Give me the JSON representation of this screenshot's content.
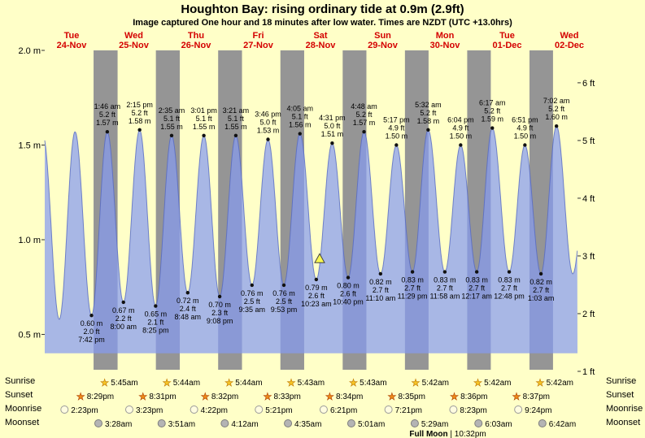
{
  "title": "Houghton Bay: rising  ordinary tide at 0.9m (2.9ft)",
  "subtitle": "Image captured One hour and 18 minutes after low water. Times are NZDT (UTC +13.0hrs)",
  "days": [
    {
      "dow": "Tue",
      "date": "24-Nov"
    },
    {
      "dow": "Wed",
      "date": "25-Nov"
    },
    {
      "dow": "Thu",
      "date": "26-Nov"
    },
    {
      "dow": "Fri",
      "date": "27-Nov"
    },
    {
      "dow": "Sat",
      "date": "28-Nov"
    },
    {
      "dow": "Sun",
      "date": "29-Nov"
    },
    {
      "dow": "Mon",
      "date": "30-Nov"
    },
    {
      "dow": "Tue",
      "date": "01-Dec"
    },
    {
      "dow": "Wed",
      "date": "02-Dec"
    }
  ],
  "y_axis": {
    "left": [
      {
        "label": "2.0 m",
        "m": 2.0
      },
      {
        "label": "1.5 m",
        "m": 1.5
      },
      {
        "label": "1.0 m",
        "m": 1.0
      },
      {
        "label": "0.5 m",
        "m": 0.5
      }
    ],
    "right": [
      {
        "label": "6 ft",
        "ft": 6
      },
      {
        "label": "5 ft",
        "ft": 5
      },
      {
        "label": "4 ft",
        "ft": 4
      },
      {
        "label": "3 ft",
        "ft": 3
      },
      {
        "label": "2 ft",
        "ft": 2
      },
      {
        "label": "1 ft",
        "ft": 1
      }
    ]
  },
  "chart_data": {
    "type": "area",
    "description": "tide height curve, cosine interpolation between tidal extremes; gray bands = night (sunset to sunrise)",
    "ylim_m": [
      0.31,
      2.0
    ],
    "extremes": [
      {
        "day": 0,
        "time": "1:00 am",
        "type": "high",
        "height_m": "1.55",
        "labeled": false
      },
      {
        "day": 0,
        "time": "7:15 am",
        "type": "low",
        "height_m": "0.58",
        "labeled": false
      },
      {
        "day": 0,
        "time": "1:20 pm",
        "type": "high",
        "height_m": "1.57",
        "labeled": false
      },
      {
        "day": 0,
        "time": "7:42 pm",
        "type": "low",
        "height_m": "0.60",
        "height_ft": "2.0",
        "labeled": true
      },
      {
        "day": 1,
        "time": "1:46 am",
        "type": "high",
        "height_m": "1.57",
        "height_ft": "5.2",
        "labeled": true
      },
      {
        "day": 1,
        "time": "8:00 am",
        "type": "low",
        "height_m": "0.67",
        "height_ft": "2.2",
        "labeled": true
      },
      {
        "day": 1,
        "time": "2:15 pm",
        "type": "high",
        "height_m": "1.58",
        "height_ft": "5.2",
        "labeled": true
      },
      {
        "day": 1,
        "time": "8:25 pm",
        "type": "low",
        "height_m": "0.65",
        "height_ft": "2.1",
        "labeled": true
      },
      {
        "day": 2,
        "time": "2:35 am",
        "type": "high",
        "height_m": "1.55",
        "height_ft": "5.1",
        "labeled": true
      },
      {
        "day": 2,
        "time": "8:48 am",
        "type": "low",
        "height_m": "0.72",
        "height_ft": "2.4",
        "labeled": true
      },
      {
        "day": 2,
        "time": "3:01 pm",
        "type": "high",
        "height_m": "1.55",
        "height_ft": "5.1",
        "labeled": true
      },
      {
        "day": 2,
        "time": "9:08 pm",
        "type": "low",
        "height_m": "0.70",
        "height_ft": "2.3",
        "labeled": true
      },
      {
        "day": 3,
        "time": "3:21 am",
        "type": "high",
        "height_m": "1.55",
        "height_ft": "5.1",
        "labeled": true
      },
      {
        "day": 3,
        "time": "9:35 am",
        "type": "low",
        "height_m": "0.76",
        "height_ft": "2.5",
        "labeled": true
      },
      {
        "day": 3,
        "time": "3:46 pm",
        "type": "high",
        "height_m": "1.53",
        "height_ft": "5.0",
        "labeled": true
      },
      {
        "day": 3,
        "time": "9:53 pm",
        "type": "low",
        "height_m": "0.76",
        "height_ft": "2.5",
        "labeled": true
      },
      {
        "day": 4,
        "time": "4:05 am",
        "type": "high",
        "height_m": "1.56",
        "height_ft": "5.1",
        "labeled": true
      },
      {
        "day": 4,
        "time": "10:23 am",
        "type": "low",
        "height_m": "0.79",
        "height_ft": "2.6",
        "labeled": true
      },
      {
        "day": 4,
        "time": "4:31 pm",
        "type": "high",
        "height_m": "1.51",
        "height_ft": "5.0",
        "labeled": true
      },
      {
        "day": 4,
        "time": "10:40 pm",
        "type": "low",
        "height_m": "0.80",
        "height_ft": "2.6",
        "labeled": true
      },
      {
        "day": 5,
        "time": "4:48 am",
        "type": "high",
        "height_m": "1.57",
        "height_ft": "5.2",
        "labeled": true
      },
      {
        "day": 5,
        "time": "11:10 am",
        "type": "low",
        "height_m": "0.82",
        "height_ft": "2.7",
        "labeled": true
      },
      {
        "day": 5,
        "time": "5:17 pm",
        "type": "high",
        "height_m": "1.50",
        "height_ft": "4.9",
        "labeled": true
      },
      {
        "day": 5,
        "time": "11:29 pm",
        "type": "low",
        "height_m": "0.83",
        "height_ft": "2.7",
        "labeled": true
      },
      {
        "day": 6,
        "time": "5:32 am",
        "type": "high",
        "height_m": "1.58",
        "height_ft": "5.2",
        "labeled": true
      },
      {
        "day": 6,
        "time": "11:58 am",
        "type": "low",
        "height_m": "0.83",
        "height_ft": "2.7",
        "labeled": true
      },
      {
        "day": 6,
        "time": "6:04 pm",
        "type": "high",
        "height_m": "1.50",
        "height_ft": "4.9",
        "labeled": true
      },
      {
        "day": 7,
        "time": "12:17 am",
        "type": "low",
        "height_m": "0.83",
        "height_ft": "2.7",
        "labeled": true
      },
      {
        "day": 7,
        "time": "6:17 am",
        "type": "high",
        "height_m": "1.59",
        "height_ft": "5.2",
        "labeled": true
      },
      {
        "day": 7,
        "time": "12:48 pm",
        "type": "low",
        "height_m": "0.83",
        "height_ft": "2.7",
        "labeled": true
      },
      {
        "day": 7,
        "time": "6:51 pm",
        "type": "high",
        "height_m": "1.50",
        "height_ft": "4.9",
        "labeled": true
      },
      {
        "day": 8,
        "time": "1:03 am",
        "type": "low",
        "height_m": "0.82",
        "height_ft": "2.7",
        "labeled": true
      },
      {
        "day": 8,
        "time": "7:02 am",
        "type": "high",
        "height_m": "1.60",
        "height_ft": "5.2",
        "labeled": true
      },
      {
        "day": 8,
        "time": "1:20 pm",
        "type": "low",
        "height_m": "0.82",
        "labeled": false
      },
      {
        "day": 8,
        "time": "7:30 pm",
        "type": "high",
        "height_m": "1.50",
        "labeled": false
      }
    ],
    "marker": {
      "day": 4,
      "time": "11:41 am",
      "height_m": 0.9,
      "note": "current tide level 0.9m rising"
    }
  },
  "astro": {
    "rows": [
      {
        "label": "Sunrise",
        "icon": "sunrise-star-icon",
        "entries": [
          {
            "day": 1,
            "time": "5:45am"
          },
          {
            "day": 2,
            "time": "5:44am"
          },
          {
            "day": 3,
            "time": "5:44am"
          },
          {
            "day": 4,
            "time": "5:43am"
          },
          {
            "day": 5,
            "time": "5:43am"
          },
          {
            "day": 6,
            "time": "5:42am"
          },
          {
            "day": 7,
            "time": "5:42am"
          },
          {
            "day": 8,
            "time": "5:42am"
          }
        ]
      },
      {
        "label": "Sunset",
        "icon": "sunset-star-icon",
        "entries": [
          {
            "day": 0,
            "time": "8:29pm"
          },
          {
            "day": 1,
            "time": "8:31pm"
          },
          {
            "day": 2,
            "time": "8:32pm"
          },
          {
            "day": 3,
            "time": "8:33pm"
          },
          {
            "day": 4,
            "time": "8:34pm"
          },
          {
            "day": 5,
            "time": "8:35pm"
          },
          {
            "day": 6,
            "time": "8:36pm"
          },
          {
            "day": 7,
            "time": "8:37pm"
          }
        ]
      },
      {
        "label": "Moonrise",
        "icon": "moonrise-icon",
        "entries": [
          {
            "day": 0,
            "time": "2:23pm"
          },
          {
            "day": 1,
            "time": "3:23pm"
          },
          {
            "day": 2,
            "time": "4:22pm"
          },
          {
            "day": 3,
            "time": "5:21pm"
          },
          {
            "day": 4,
            "time": "6:21pm"
          },
          {
            "day": 5,
            "time": "7:21pm"
          },
          {
            "day": 6,
            "time": "8:23pm"
          },
          {
            "day": 7,
            "time": "9:24pm"
          }
        ]
      },
      {
        "label": "Moonset",
        "icon": "moonset-icon",
        "entries": [
          {
            "day": 1,
            "time": "3:28am"
          },
          {
            "day": 2,
            "time": "3:51am"
          },
          {
            "day": 3,
            "time": "4:12am"
          },
          {
            "day": 4,
            "time": "4:35am"
          },
          {
            "day": 5,
            "time": "5:01am"
          },
          {
            "day": 6,
            "time": "5:29am"
          },
          {
            "day": 7,
            "time": "6:03am"
          },
          {
            "day": 8,
            "time": "6:42am"
          }
        ]
      }
    ],
    "moon_phase": {
      "label": "Full Moon",
      "separator": "|",
      "time": "10:32pm",
      "day": 6
    }
  },
  "colors": {
    "page_bg": "#FFFFC8",
    "night_band": "#959595",
    "tide_fill": "rgba(135,155,240,0.72)",
    "tide_stroke": "rgba(85,105,195,0.8)",
    "day_label": "#D40000",
    "text": "#000000",
    "marker_fill": "#F8F850",
    "marker_stroke": "#444444",
    "sunrise_star": "#F5C425",
    "sunrise_star_edge": "#C07800",
    "sunset_star": "#EE8A18",
    "sunset_star_edge": "#B04000",
    "moonrise_fill": "#FFFCE0",
    "moonrise_edge": "#9A9A9A",
    "moonset_fill": "#B4B4B4",
    "moonset_edge": "#7E7E7E"
  }
}
